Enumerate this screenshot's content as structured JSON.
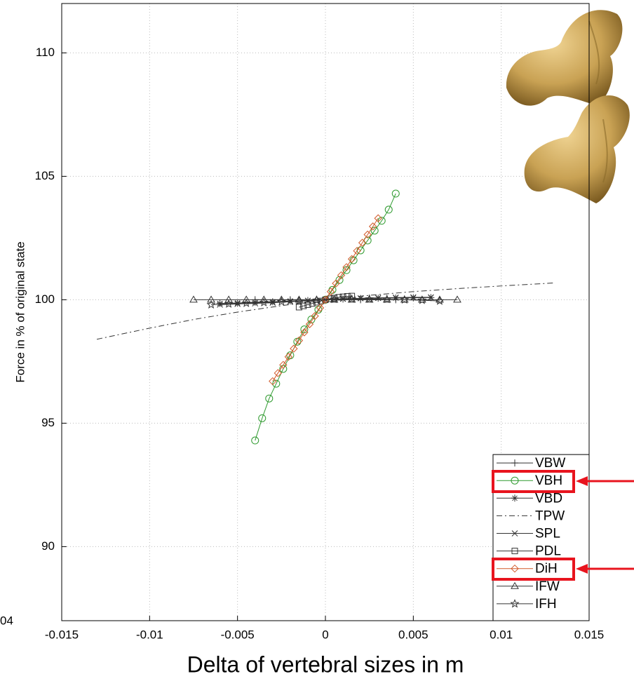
{
  "chart_data": {
    "type": "line",
    "x_label": "Delta of vertebral sizes in m",
    "y_label": "Force in % of original state",
    "annotation": "04",
    "xlim": [
      -0.015,
      0.015
    ],
    "xticks": [
      -0.015,
      -0.01,
      -0.005,
      0,
      0.005,
      0.01,
      0.015
    ],
    "ylim": [
      87,
      112
    ],
    "yticks": [
      90,
      95,
      100,
      105,
      110
    ],
    "grid": true,
    "legend": "lower right",
    "series": [
      {
        "name": "VBW",
        "color": "#333333",
        "marker": "plus",
        "dash": "solid",
        "x": [
          -0.004,
          -0.002,
          0,
          0.002,
          0.004
        ],
        "values": [
          100,
          100,
          100,
          100,
          100
        ]
      },
      {
        "name": "VBH",
        "color": "#2e9a2e",
        "marker": "circle",
        "dash": "solid",
        "x": [
          -0.004,
          -0.0036,
          -0.0032,
          -0.0028,
          -0.0024,
          -0.002,
          -0.0016,
          -0.0012,
          -0.0008,
          -0.0004,
          0,
          0.0004,
          0.0008,
          0.0012,
          0.0016,
          0.002,
          0.0024,
          0.0028,
          0.0032,
          0.0036,
          0.004
        ],
        "values": [
          94.3,
          95.2,
          96.0,
          96.6,
          97.2,
          97.75,
          98.3,
          98.8,
          99.2,
          99.6,
          100,
          100.4,
          100.8,
          101.2,
          101.6,
          102.0,
          102.4,
          102.8,
          103.2,
          103.65,
          104.3
        ]
      },
      {
        "name": "VBD",
        "color": "#333333",
        "marker": "asterisk",
        "dash": "solid",
        "x": [
          -0.006,
          -0.005,
          -0.004,
          -0.003,
          -0.002,
          -0.001,
          0,
          0.001,
          0.002,
          0.003,
          0.004,
          0.005,
          0.006
        ],
        "values": [
          99.85,
          99.87,
          99.9,
          99.92,
          99.95,
          99.97,
          100,
          100.03,
          100.05,
          100.06,
          100.07,
          100.08,
          100.09
        ]
      },
      {
        "name": "TPW",
        "color": "#333333",
        "marker": "none",
        "dash": "dashdot",
        "x": [
          -0.013,
          -0.01,
          -0.0075,
          -0.005,
          -0.0025,
          0,
          0.0025,
          0.005,
          0.0075,
          0.01,
          0.013
        ],
        "values": [
          98.4,
          98.85,
          99.2,
          99.5,
          99.76,
          100,
          100.18,
          100.33,
          100.45,
          100.56,
          100.68
        ]
      },
      {
        "name": "SPL",
        "color": "#333333",
        "marker": "cross",
        "dash": "solid",
        "x": [
          -0.006,
          -0.005,
          -0.004,
          -0.003,
          -0.002,
          -0.001,
          0,
          0.001,
          0.002,
          0.003,
          0.004,
          0.005,
          0.006
        ],
        "values": [
          99.8,
          99.83,
          99.85,
          99.88,
          99.92,
          99.96,
          100,
          100.04,
          100.06,
          100.08,
          100.09,
          100.1,
          100.1
        ]
      },
      {
        "name": "PDL",
        "color": "#333333",
        "marker": "square",
        "dash": "solid",
        "x": [
          -0.0015,
          -0.00125,
          -0.001,
          -0.00075,
          -0.0005,
          -0.00025,
          0,
          0.00025,
          0.0005,
          0.00075,
          0.001,
          0.00125,
          0.0015
        ],
        "values": [
          99.7,
          99.75,
          99.8,
          99.85,
          99.9,
          99.95,
          100,
          100.04,
          100.07,
          100.1,
          100.12,
          100.14,
          100.15
        ]
      },
      {
        "name": "DiH",
        "color": "#d2592a",
        "marker": "diamond",
        "dash": "solid",
        "x": [
          -0.003,
          -0.0027,
          -0.0024,
          -0.0021,
          -0.0018,
          -0.0015,
          -0.0012,
          -0.0009,
          -0.0006,
          -0.0003,
          0,
          0.0003,
          0.0006,
          0.0009,
          0.0012,
          0.0015,
          0.0018,
          0.0021,
          0.0024,
          0.0027,
          0.003
        ],
        "values": [
          96.7,
          97.03,
          97.36,
          97.69,
          98.02,
          98.35,
          98.68,
          99.01,
          99.34,
          99.67,
          100,
          100.33,
          100.66,
          100.99,
          101.32,
          101.65,
          101.98,
          102.31,
          102.64,
          102.97,
          103.3
        ]
      },
      {
        "name": "IFW",
        "color": "#333333",
        "marker": "triangle",
        "dash": "solid",
        "x": [
          -0.0075,
          -0.0065,
          -0.0055,
          -0.0045,
          -0.0035,
          -0.0025,
          -0.0015,
          -0.0005,
          0.0005,
          0.0015,
          0.0025,
          0.0035,
          0.0045,
          0.0055,
          0.0065,
          0.0075
        ],
        "values": [
          100,
          100,
          100,
          100,
          100,
          100,
          100,
          100,
          100,
          100,
          100,
          100,
          100,
          100,
          100,
          100
        ]
      },
      {
        "name": "IFH",
        "color": "#333333",
        "marker": "star",
        "dash": "solid",
        "x": [
          -0.0065,
          -0.0055,
          -0.0045,
          -0.0035,
          -0.0025,
          -0.0015,
          -0.0005,
          0.0005,
          0.0015,
          0.0025,
          0.0035,
          0.0045,
          0.0055,
          0.0065
        ],
        "values": [
          99.8,
          99.83,
          99.86,
          99.89,
          99.92,
          99.95,
          99.98,
          100.02,
          100.03,
          100.03,
          100.02,
          100.0,
          99.98,
          99.95
        ]
      }
    ]
  }
}
